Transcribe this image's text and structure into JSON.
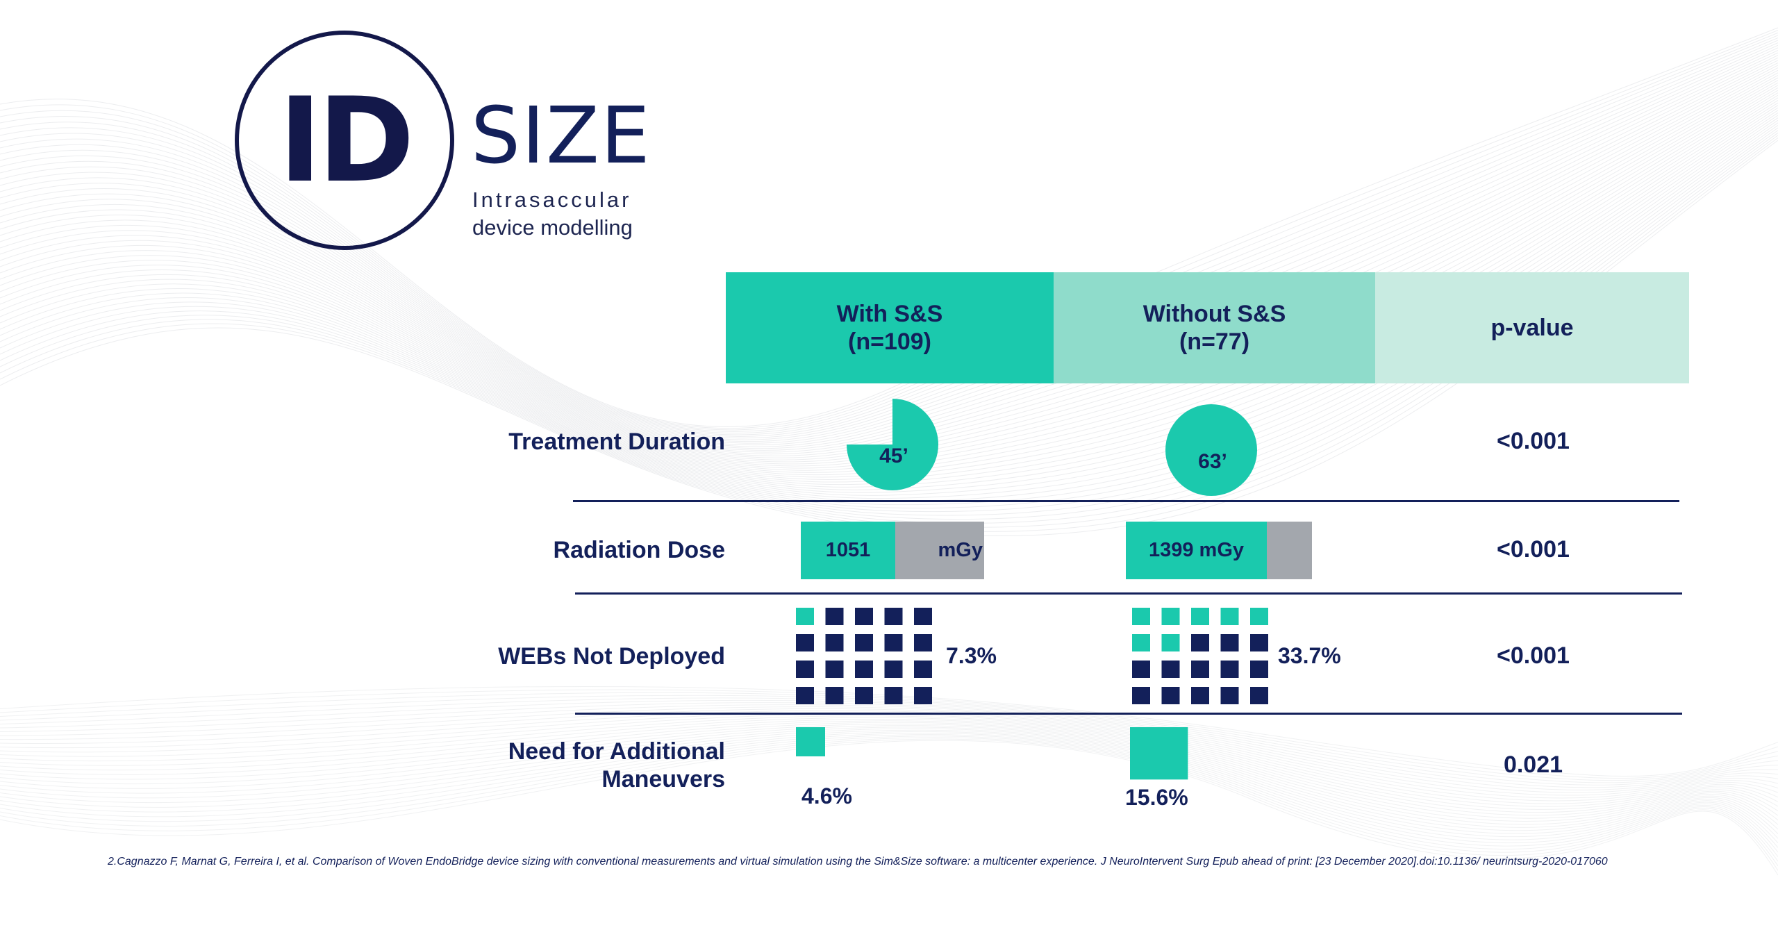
{
  "logo": {
    "id_text": "ID",
    "size_text": "SIZE",
    "subtitle_line1": "Intrasaccular",
    "subtitle_line2": "device modelling"
  },
  "chart_data": {
    "type": "table",
    "columns": [
      {
        "name_line1": "With S&S",
        "name_line2": "(n=109)"
      },
      {
        "name_line1": "Without S&S",
        "name_line2": "(n=77)"
      },
      {
        "name_line1": "p-value",
        "name_line2": ""
      }
    ],
    "rows": [
      {
        "label_line1": "Treatment Duration",
        "label_line2": "",
        "with_value": 45,
        "with_label": "45’",
        "without_value": 63,
        "without_label": "63’",
        "clock_max_minutes": 60,
        "p_value": "<0.001"
      },
      {
        "label_line1": "Radiation Dose",
        "label_line2": "",
        "with_value": 1051,
        "with_label": "1051",
        "with_unit": "mGy",
        "without_value": 1399,
        "without_label": "1399 mGy",
        "p_value": "<0.001"
      },
      {
        "label_line1": "WEBs Not Deployed",
        "label_line2": "",
        "with_value": 7.3,
        "with_label": "7.3%",
        "with_highlighted_squares": 1,
        "without_value": 33.7,
        "without_label": "33.7%",
        "without_highlighted_squares": 7,
        "grid_total_squares": 20,
        "p_value": "<0.001"
      },
      {
        "label_line1": "Need for Additional",
        "label_line2": "Maneuvers",
        "with_value": 4.6,
        "with_label": "4.6%",
        "without_value": 15.6,
        "without_label": "15.6%",
        "p_value": "0.021"
      }
    ]
  },
  "colors": {
    "teal": "#1bc9ad",
    "teal_light": "#8fdccb",
    "teal_pale": "#c8ebe1",
    "navy": "#13205a",
    "grey": "#a3a7ad"
  },
  "footnote": "2.Cagnazzo F, Marnat G, Ferreira I, et al. Comparison of Woven EndoBridge device sizing with conventional measurements and virtual simulation using the Sim&Size software: a multicenter experience. J NeuroIntervent Surg Epub ahead of print: [23 December 2020].doi:10.1136/ neurintsurg-2020-017060"
}
